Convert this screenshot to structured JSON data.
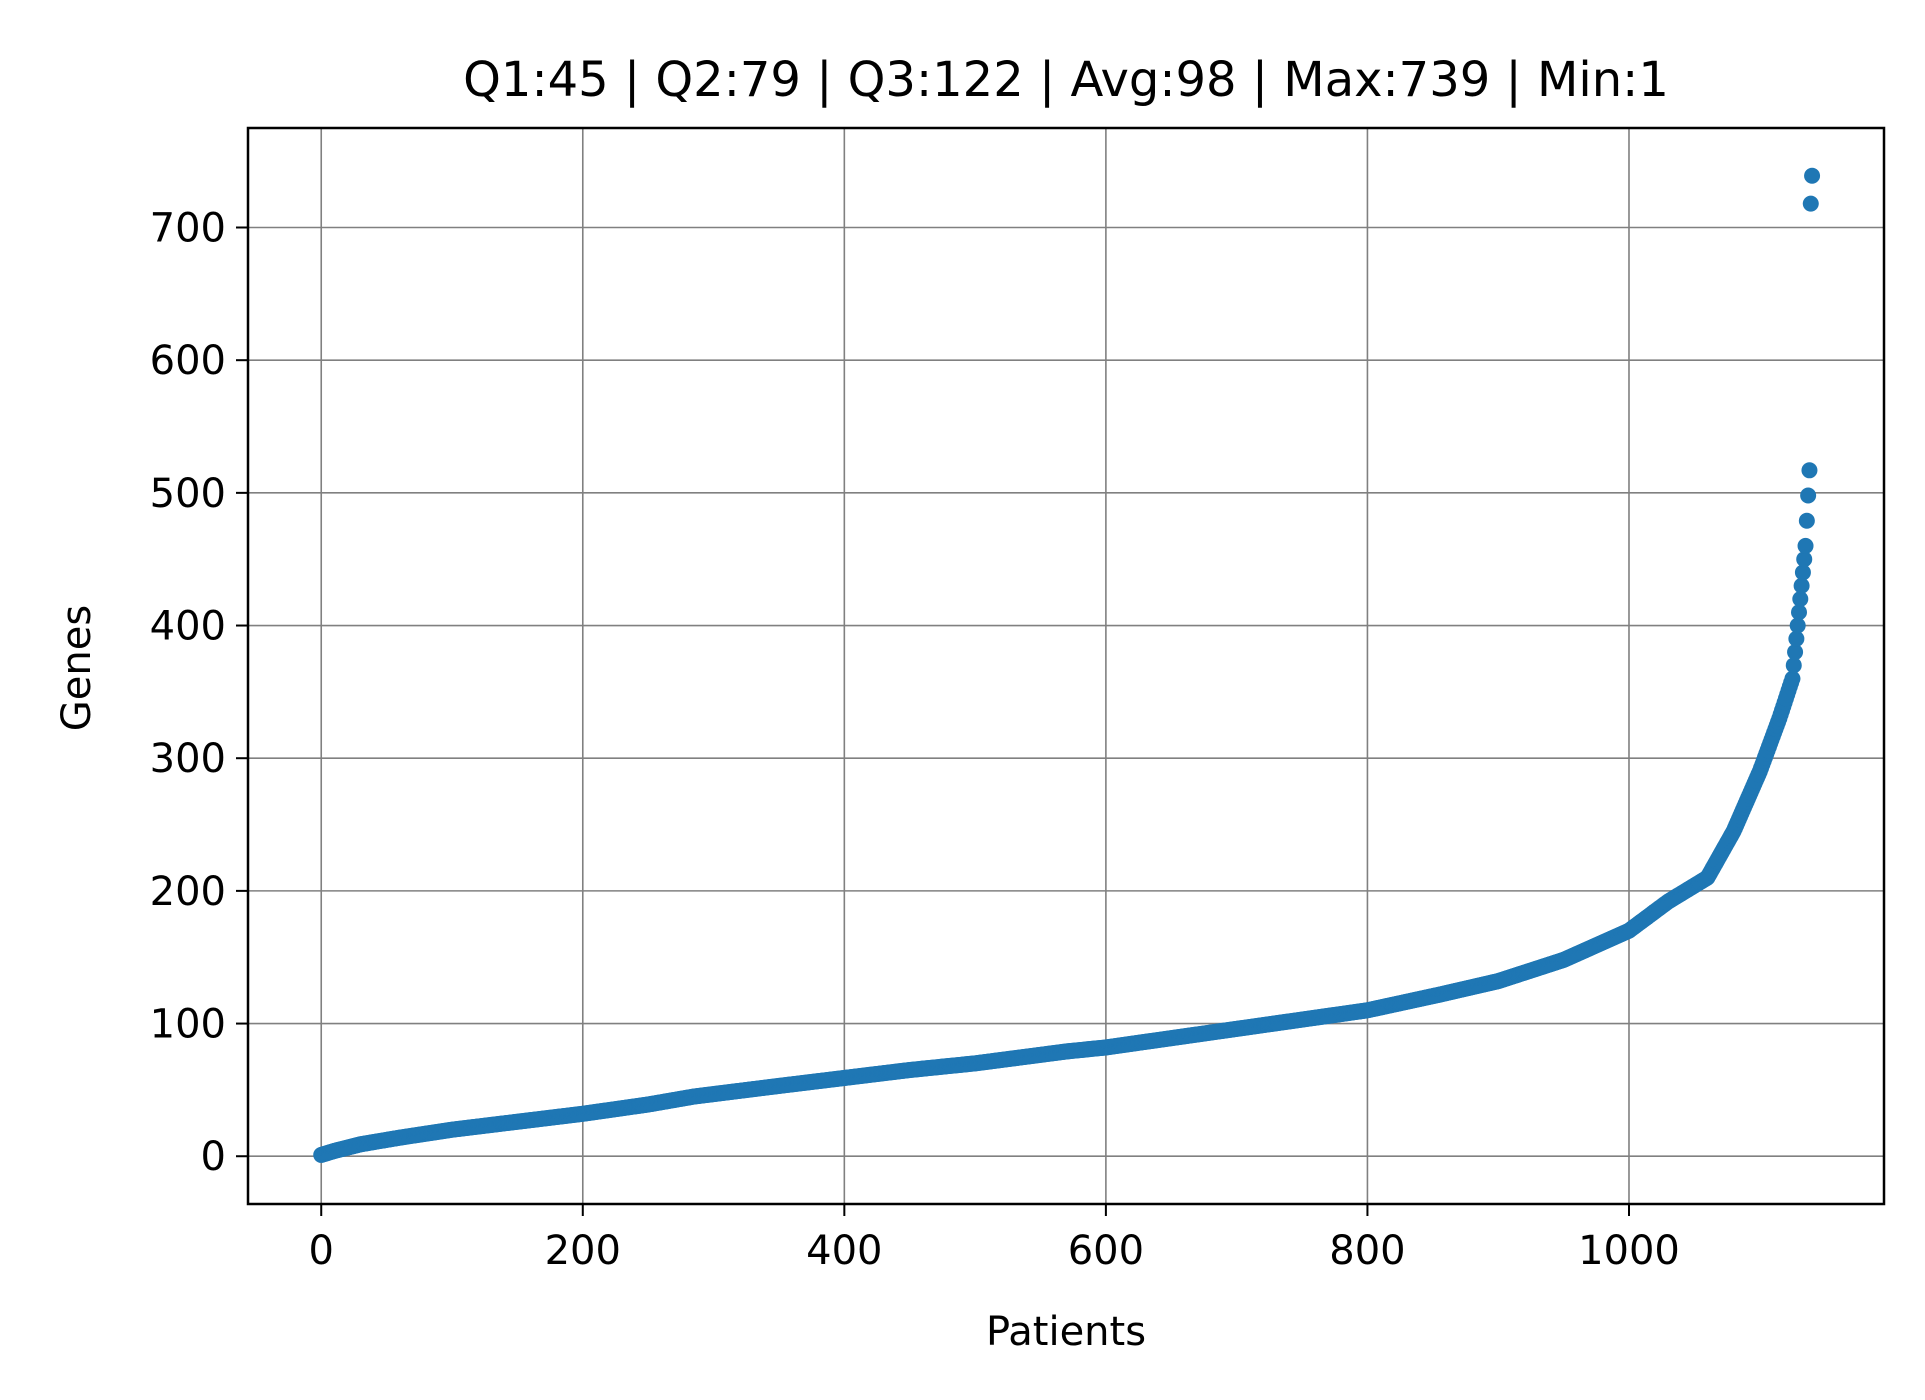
{
  "chart_data": {
    "type": "scatter",
    "title": "Q1:45 | Q2:79 | Q3:122 | Avg:98 | Max:739 | Min:1",
    "xlabel": "Patients",
    "ylabel": "Genes",
    "xlim": [
      -56,
      1195
    ],
    "ylim": [
      -36,
      775
    ],
    "xticks": [
      0,
      200,
      400,
      600,
      800,
      1000
    ],
    "yticks": [
      0,
      100,
      200,
      300,
      400,
      500,
      600,
      700
    ],
    "grid": true,
    "marker_color": "#1f77b4",
    "n_points": 1141,
    "series": [
      {
        "curve_knots": [
          [
            0,
            1
          ],
          [
            10,
            4
          ],
          [
            30,
            9
          ],
          [
            60,
            14
          ],
          [
            100,
            20
          ],
          [
            150,
            26
          ],
          [
            200,
            32
          ],
          [
            250,
            39
          ],
          [
            285,
            45
          ],
          [
            350,
            53
          ],
          [
            400,
            59
          ],
          [
            450,
            65
          ],
          [
            500,
            70
          ],
          [
            570,
            79
          ],
          [
            600,
            82
          ],
          [
            650,
            89
          ],
          [
            700,
            96
          ],
          [
            750,
            103
          ],
          [
            800,
            110
          ],
          [
            856,
            122
          ],
          [
            900,
            132
          ],
          [
            950,
            148
          ],
          [
            1000,
            170
          ],
          [
            1030,
            192
          ],
          [
            1060,
            210
          ],
          [
            1080,
            245
          ],
          [
            1100,
            290
          ],
          [
            1115,
            330
          ],
          [
            1125,
            360
          ],
          [
            1130,
            410
          ],
          [
            1135,
            460
          ],
          [
            1138,
            517
          ]
        ],
        "extra_points": [
          [
            1139,
            718
          ],
          [
            1140,
            739
          ]
        ]
      }
    ]
  }
}
